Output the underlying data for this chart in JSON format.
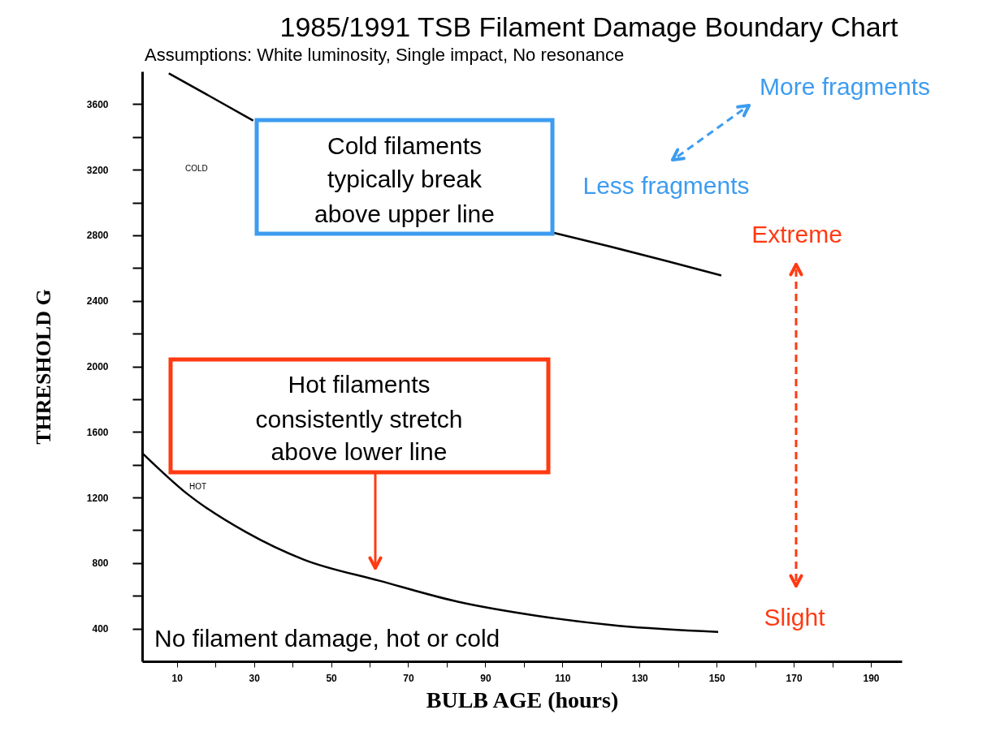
{
  "chart_data": {
    "type": "line",
    "title": "1985/1991 TSB Filament Damage Boundary Chart",
    "subtitle": "Assumptions: White luminosity, Single impact, No resonance",
    "xlabel": "BULB AGE (hours)",
    "ylabel": "THRESHOLD G",
    "xlim": [
      1,
      198
    ],
    "ylim": [
      200,
      3800
    ],
    "xticks": [
      10,
      {
        "value": 20,
        "label": null
      },
      30,
      {
        "value": 40,
        "label": null
      },
      50,
      {
        "value": 60,
        "label": null
      },
      70,
      {
        "value": 80,
        "label": null
      },
      90,
      {
        "value": 100,
        "label": null
      },
      110,
      {
        "value": 120,
        "label": null
      },
      130,
      {
        "value": 140,
        "label": null
      },
      150,
      {
        "value": 160,
        "label": null
      },
      170,
      {
        "value": 180,
        "label": null
      },
      190
    ],
    "yticks": [
      400,
      {
        "value": 600,
        "label": null
      },
      800,
      {
        "value": 1000,
        "label": null
      },
      1200,
      {
        "value": 1400,
        "label": null
      },
      1600,
      {
        "value": 1800,
        "label": null
      },
      2000,
      {
        "value": 2200,
        "label": null
      },
      2400,
      {
        "value": 2600,
        "label": null
      },
      2800,
      {
        "value": 3000,
        "label": null
      },
      3200,
      {
        "value": 3400,
        "label": null
      },
      3600
    ],
    "grid": false,
    "marker": "none",
    "line_style": "solid",
    "series": [
      {
        "color": "#000000",
        "x": [
          7.9,
          18.9,
          29.8,
          70,
          107.4,
          122.1,
          136.9,
          151.2
        ],
        "values": [
          3788,
          3644,
          3500,
          null,
          2817,
          2733,
          2644,
          2555
        ]
      },
      {
        "color": "#000000",
        "x": [
          1.3,
          12.7,
          27.9,
          42.9,
          62.5,
          83.1,
          103.2,
          123.2,
          150.4
        ],
        "values": [
          1465,
          1222,
          989,
          821,
          692,
          563,
          479,
          420,
          380
        ]
      }
    ],
    "annotations": [
      "COLD",
      "HOT",
      "Cold filaments\ntypically break\nabove upper line",
      "Hot filaments\nconsistently stretch\nabove lower line",
      "More fragments",
      "Less fragments",
      "Extreme",
      "Slight",
      "No filament damage, hot or cold"
    ]
  }
}
